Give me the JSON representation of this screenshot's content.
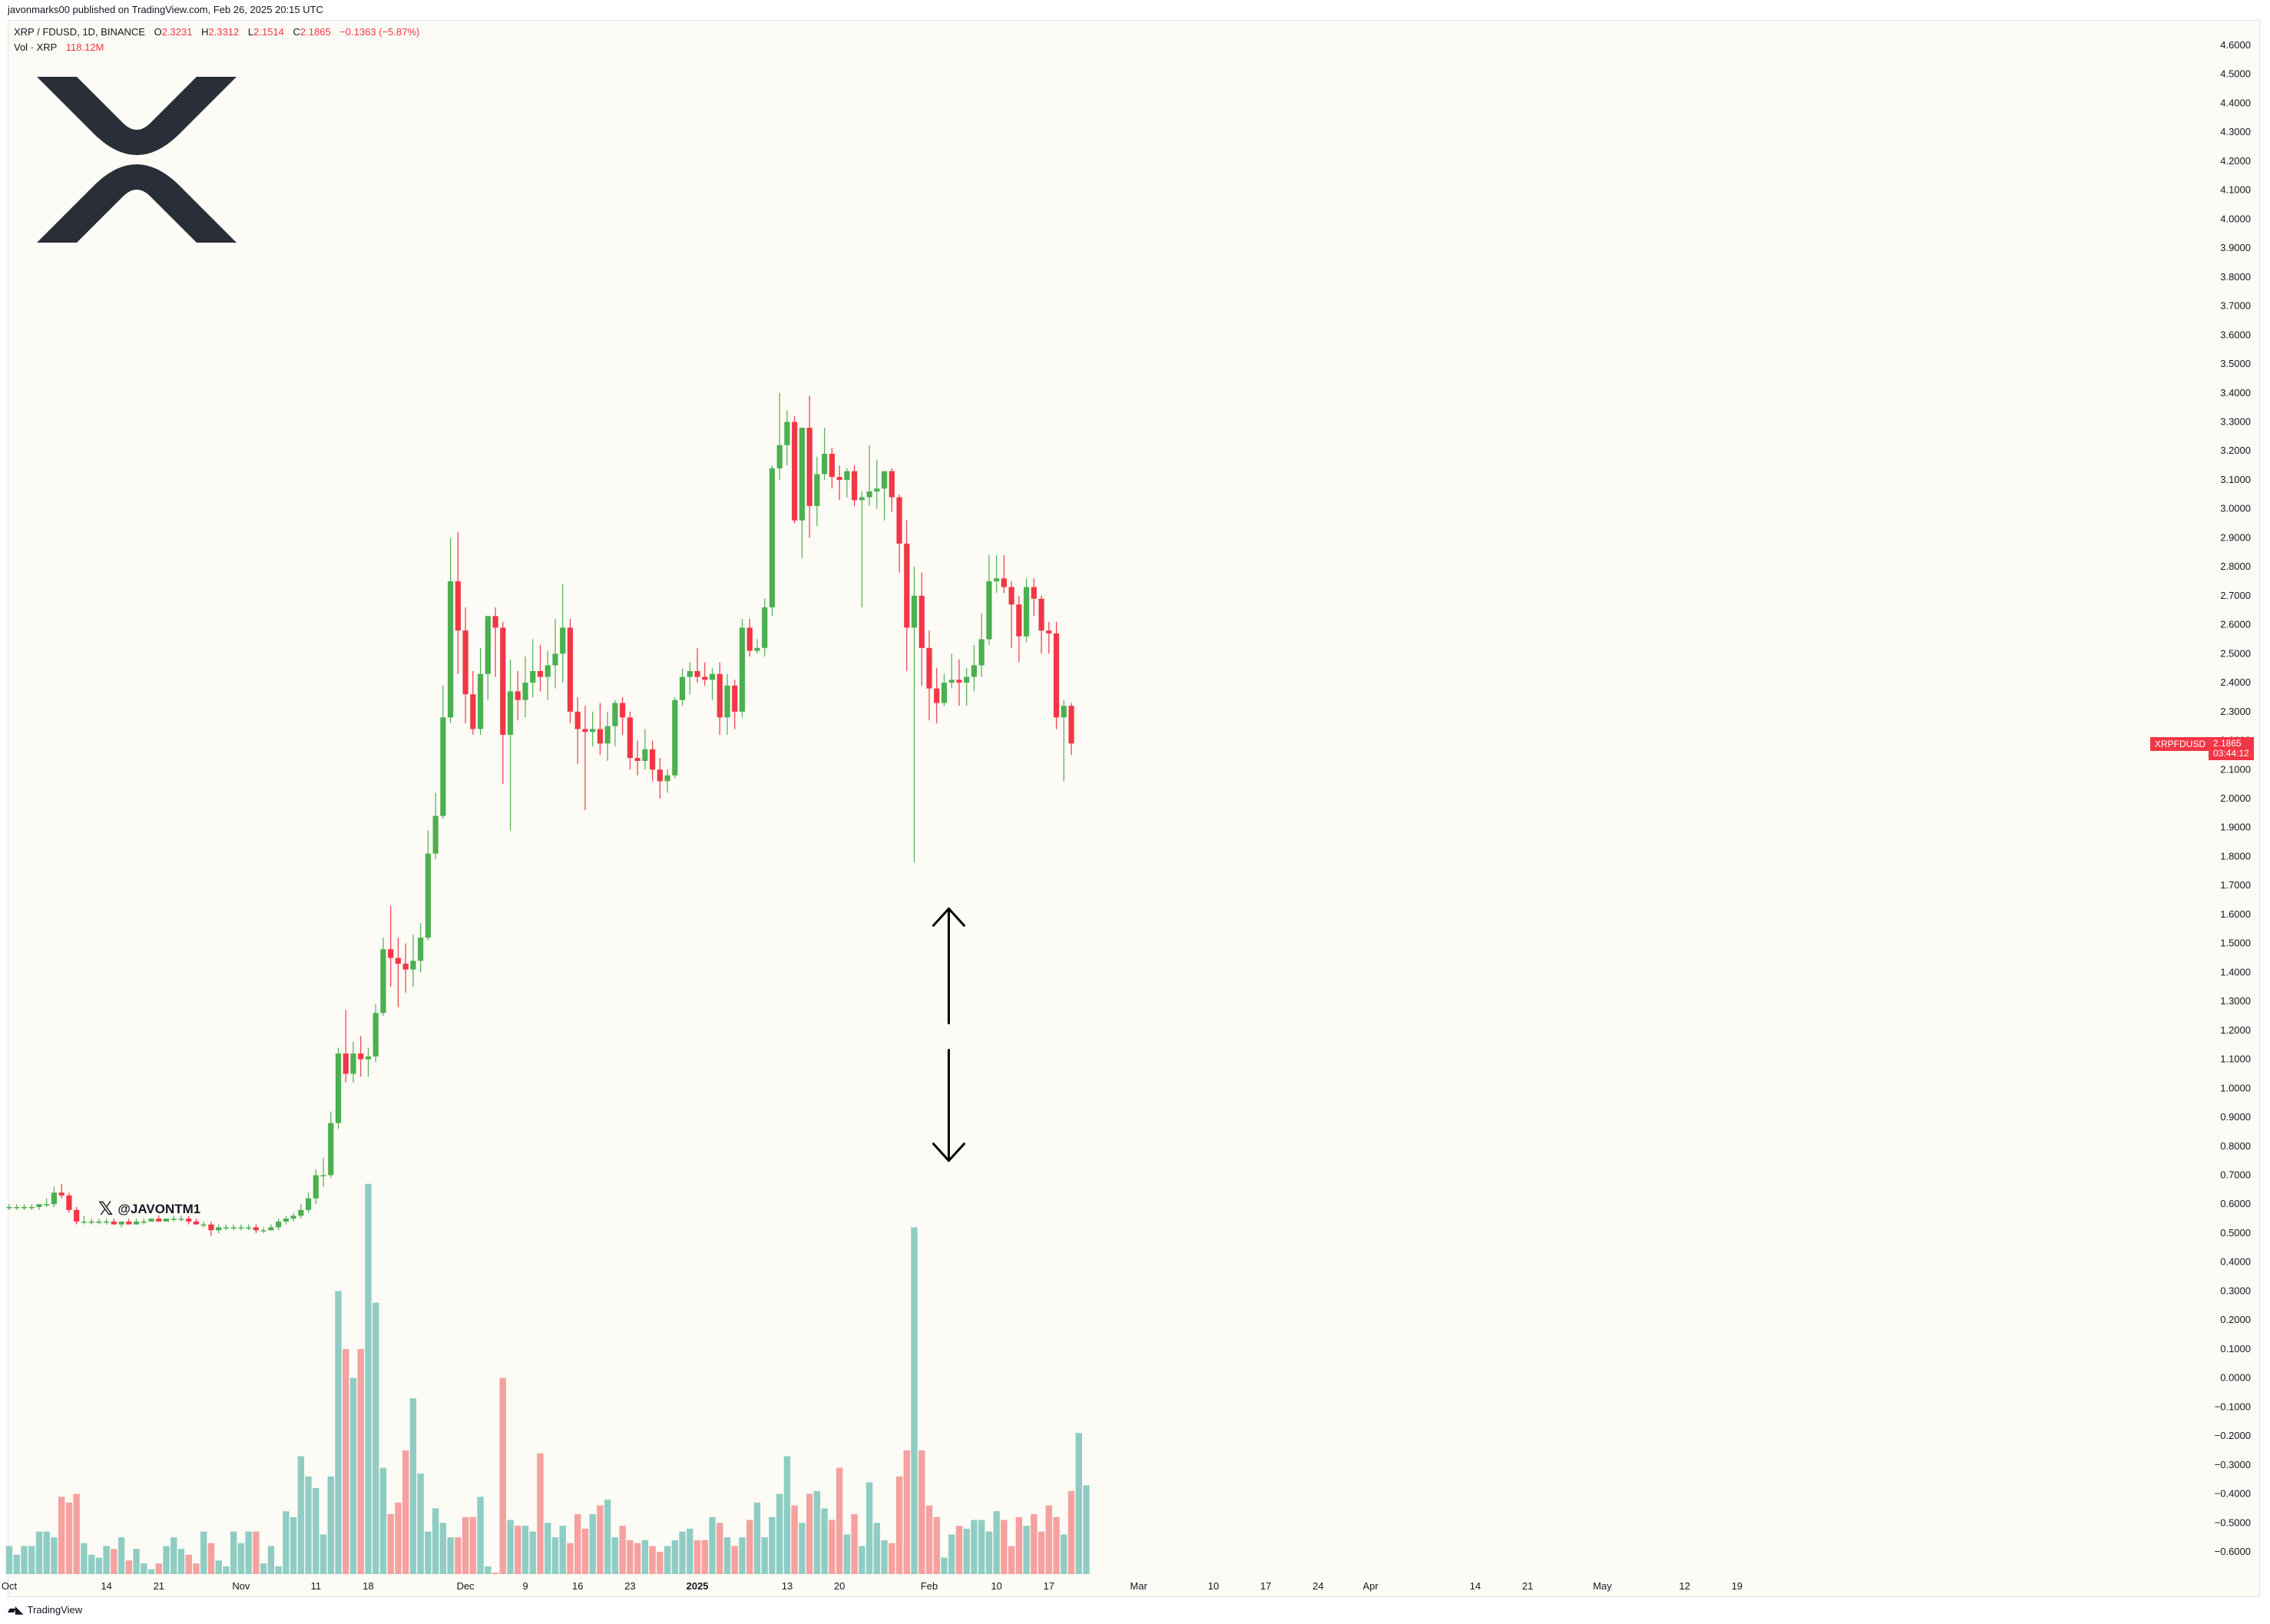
{
  "header": {
    "published": "javonmarks00 published on TradingView.com, Feb 26, 2025 20:15 UTC"
  },
  "legend": {
    "symbol": "XRP / FDUSD, 1D, BINANCE",
    "o_label": "O",
    "o": "2.3231",
    "h_label": "H",
    "h": "2.3312",
    "l_label": "L",
    "l": "2.1514",
    "c_label": "C",
    "c": "2.1865",
    "change": "−0.1363 (−5.87%)",
    "vol_label": "Vol · XRP",
    "vol": "118.12M"
  },
  "price_tag": {
    "symbol": "XRPFDUSD",
    "price": "2.1865",
    "countdown": "03:44:12"
  },
  "handle": {
    "text": "@JAVONTM1",
    "icon": "x-logo-icon"
  },
  "logo": {
    "icon": "xrp-logo-icon"
  },
  "footer": {
    "brand": "TradingView"
  },
  "colors": {
    "up": "#4caf50",
    "down": "#f23645",
    "vol_up": "#8fcdc4",
    "vol_down": "#f4a19f",
    "background": "#fdfbf5"
  },
  "chart_data": {
    "type": "candlestick",
    "symbol": "XRP / FDUSD",
    "interval": "1D",
    "y_axis": {
      "side": "right",
      "min": -0.6,
      "max": 4.6,
      "step": 0.1,
      "labels": [
        "4.6000",
        "4.5000",
        "4.4000",
        "4.3000",
        "4.2000",
        "4.1000",
        "4.0000",
        "3.9000",
        "3.8000",
        "3.7000",
        "3.6000",
        "3.5000",
        "3.4000",
        "3.3000",
        "3.2000",
        "3.1000",
        "3.0000",
        "2.9000",
        "2.8000",
        "2.7000",
        "2.6000",
        "2.5000",
        "2.4000",
        "2.3000",
        "2.2000",
        "2.1000",
        "2.0000",
        "1.9000",
        "1.8000",
        "1.7000",
        "1.6000",
        "1.5000",
        "1.4000",
        "1.3000",
        "1.2000",
        "1.1000",
        "1.0000",
        "0.9000",
        "0.8000",
        "0.7000",
        "0.6000",
        "0.5000",
        "0.4000",
        "0.3000",
        "0.2000",
        "0.1000",
        "0.0000",
        "−0.1000",
        "−0.2000",
        "−0.3000",
        "−0.4000",
        "−0.5000",
        "−0.6000"
      ]
    },
    "x_axis": {
      "labels": [
        "Oct",
        "14",
        "21",
        "Nov",
        "11",
        "18",
        "Dec",
        "9",
        "16",
        "23",
        "2025",
        "13",
        "20",
        "Feb",
        "10",
        "17",
        "Mar",
        "10",
        "17",
        "24",
        "Apr",
        "14",
        "21",
        "May",
        "12",
        "19"
      ],
      "label_day_index": [
        0,
        13,
        20,
        31,
        41,
        48,
        61,
        69,
        76,
        83,
        92,
        104,
        111,
        123,
        132,
        139,
        151,
        161,
        168,
        175,
        182,
        196,
        203,
        213,
        224,
        231
      ]
    },
    "annotations": [
      {
        "type": "double-arrow",
        "day_from": 125,
        "price_from": 1.62,
        "price_to": 0.75
      }
    ],
    "candles": [
      [
        0.59,
        0.6,
        0.58,
        0.59
      ],
      [
        0.59,
        0.6,
        0.58,
        0.59
      ],
      [
        0.59,
        0.6,
        0.58,
        0.59
      ],
      [
        0.59,
        0.6,
        0.58,
        0.59
      ],
      [
        0.59,
        0.6,
        0.58,
        0.6
      ],
      [
        0.6,
        0.62,
        0.59,
        0.6
      ],
      [
        0.6,
        0.66,
        0.59,
        0.64
      ],
      [
        0.64,
        0.67,
        0.62,
        0.63
      ],
      [
        0.63,
        0.64,
        0.57,
        0.58
      ],
      [
        0.58,
        0.59,
        0.53,
        0.54
      ],
      [
        0.54,
        0.56,
        0.53,
        0.54
      ],
      [
        0.54,
        0.55,
        0.53,
        0.54
      ],
      [
        0.54,
        0.55,
        0.53,
        0.54
      ],
      [
        0.54,
        0.55,
        0.53,
        0.54
      ],
      [
        0.54,
        0.55,
        0.53,
        0.53
      ],
      [
        0.53,
        0.54,
        0.52,
        0.54
      ],
      [
        0.54,
        0.55,
        0.53,
        0.53
      ],
      [
        0.53,
        0.55,
        0.53,
        0.54
      ],
      [
        0.54,
        0.55,
        0.53,
        0.54
      ],
      [
        0.54,
        0.55,
        0.54,
        0.55
      ],
      [
        0.55,
        0.56,
        0.54,
        0.54
      ],
      [
        0.54,
        0.55,
        0.54,
        0.55
      ],
      [
        0.55,
        0.56,
        0.54,
        0.55
      ],
      [
        0.55,
        0.56,
        0.54,
        0.55
      ],
      [
        0.55,
        0.56,
        0.53,
        0.54
      ],
      [
        0.54,
        0.55,
        0.53,
        0.53
      ],
      [
        0.53,
        0.54,
        0.52,
        0.53
      ],
      [
        0.53,
        0.54,
        0.49,
        0.51
      ],
      [
        0.51,
        0.53,
        0.5,
        0.52
      ],
      [
        0.52,
        0.53,
        0.51,
        0.52
      ],
      [
        0.52,
        0.53,
        0.51,
        0.52
      ],
      [
        0.52,
        0.53,
        0.51,
        0.52
      ],
      [
        0.52,
        0.53,
        0.51,
        0.52
      ],
      [
        0.52,
        0.53,
        0.5,
        0.51
      ],
      [
        0.51,
        0.52,
        0.5,
        0.51
      ],
      [
        0.51,
        0.53,
        0.51,
        0.52
      ],
      [
        0.52,
        0.55,
        0.51,
        0.54
      ],
      [
        0.54,
        0.56,
        0.53,
        0.55
      ],
      [
        0.55,
        0.57,
        0.54,
        0.56
      ],
      [
        0.56,
        0.6,
        0.55,
        0.58
      ],
      [
        0.58,
        0.64,
        0.57,
        0.62
      ],
      [
        0.62,
        0.72,
        0.6,
        0.7
      ],
      [
        0.7,
        0.76,
        0.66,
        0.7
      ],
      [
        0.7,
        0.92,
        0.69,
        0.88
      ],
      [
        0.88,
        1.14,
        0.86,
        1.12
      ],
      [
        1.12,
        1.27,
        1.02,
        1.05
      ],
      [
        1.05,
        1.16,
        1.02,
        1.12
      ],
      [
        1.12,
        1.18,
        1.04,
        1.1
      ],
      [
        1.1,
        1.14,
        1.04,
        1.11
      ],
      [
        1.11,
        1.29,
        1.09,
        1.26
      ],
      [
        1.26,
        1.52,
        1.25,
        1.48
      ],
      [
        1.48,
        1.63,
        1.35,
        1.45
      ],
      [
        1.45,
        1.52,
        1.28,
        1.43
      ],
      [
        1.43,
        1.5,
        1.33,
        1.41
      ],
      [
        1.41,
        1.53,
        1.35,
        1.44
      ],
      [
        1.44,
        1.57,
        1.4,
        1.52
      ],
      [
        1.52,
        1.89,
        1.51,
        1.81
      ],
      [
        1.81,
        2.02,
        1.79,
        1.94
      ],
      [
        1.94,
        2.39,
        1.93,
        2.28
      ],
      [
        2.28,
        2.9,
        2.26,
        2.75
      ],
      [
        2.75,
        2.92,
        2.43,
        2.58
      ],
      [
        2.58,
        2.66,
        2.26,
        2.36
      ],
      [
        2.36,
        2.44,
        2.22,
        2.24
      ],
      [
        2.24,
        2.52,
        2.22,
        2.43
      ],
      [
        2.43,
        2.63,
        2.34,
        2.63
      ],
      [
        2.63,
        2.66,
        2.42,
        2.59
      ],
      [
        2.59,
        2.61,
        2.05,
        2.22
      ],
      [
        2.22,
        2.48,
        1.89,
        2.37
      ],
      [
        2.37,
        2.44,
        2.27,
        2.34
      ],
      [
        2.34,
        2.49,
        2.28,
        2.4
      ],
      [
        2.4,
        2.55,
        2.35,
        2.44
      ],
      [
        2.44,
        2.53,
        2.37,
        2.42
      ],
      [
        2.42,
        2.51,
        2.34,
        2.46
      ],
      [
        2.46,
        2.62,
        2.38,
        2.5
      ],
      [
        2.5,
        2.74,
        2.4,
        2.59
      ],
      [
        2.59,
        2.62,
        2.26,
        2.3
      ],
      [
        2.3,
        2.35,
        2.12,
        2.24
      ],
      [
        2.24,
        2.32,
        1.96,
        2.23
      ],
      [
        2.23,
        2.3,
        2.18,
        2.24
      ],
      [
        2.24,
        2.33,
        2.15,
        2.19
      ],
      [
        2.19,
        2.3,
        2.13,
        2.25
      ],
      [
        2.25,
        2.34,
        2.18,
        2.33
      ],
      [
        2.33,
        2.35,
        2.22,
        2.28
      ],
      [
        2.28,
        2.3,
        2.1,
        2.14
      ],
      [
        2.14,
        2.2,
        2.08,
        2.13
      ],
      [
        2.13,
        2.24,
        2.1,
        2.17
      ],
      [
        2.17,
        2.2,
        2.06,
        2.1
      ],
      [
        2.1,
        2.14,
        2.0,
        2.06
      ],
      [
        2.06,
        2.1,
        2.02,
        2.08
      ],
      [
        2.08,
        2.35,
        2.07,
        2.34
      ],
      [
        2.34,
        2.45,
        2.32,
        2.42
      ],
      [
        2.42,
        2.47,
        2.36,
        2.44
      ],
      [
        2.44,
        2.52,
        2.4,
        2.42
      ],
      [
        2.42,
        2.47,
        2.39,
        2.41
      ],
      [
        2.41,
        2.45,
        2.34,
        2.43
      ],
      [
        2.43,
        2.47,
        2.22,
        2.28
      ],
      [
        2.28,
        2.43,
        2.22,
        2.39
      ],
      [
        2.39,
        2.41,
        2.24,
        2.3
      ],
      [
        2.3,
        2.62,
        2.28,
        2.59
      ],
      [
        2.59,
        2.62,
        2.49,
        2.51
      ],
      [
        2.51,
        2.55,
        2.5,
        2.52
      ],
      [
        2.52,
        2.69,
        2.49,
        2.66
      ],
      [
        2.66,
        3.15,
        2.63,
        3.14
      ],
      [
        3.14,
        3.4,
        3.1,
        3.22
      ],
      [
        3.22,
        3.34,
        3.15,
        3.3
      ],
      [
        3.3,
        3.32,
        2.95,
        2.96
      ],
      [
        2.96,
        3.26,
        2.83,
        3.28
      ],
      [
        3.28,
        3.39,
        2.9,
        3.01
      ],
      [
        3.01,
        3.18,
        2.94,
        3.12
      ],
      [
        3.12,
        3.28,
        3.1,
        3.19
      ],
      [
        3.19,
        3.21,
        3.07,
        3.11
      ],
      [
        3.11,
        3.15,
        3.03,
        3.1
      ],
      [
        3.1,
        3.14,
        3.04,
        3.13
      ],
      [
        3.13,
        3.15,
        3.01,
        3.03
      ],
      [
        3.03,
        3.06,
        2.66,
        3.04
      ],
      [
        3.04,
        3.22,
        3.01,
        3.06
      ],
      [
        3.06,
        3.17,
        3.0,
        3.07
      ],
      [
        3.07,
        3.12,
        2.96,
        3.13
      ],
      [
        3.13,
        3.14,
        2.99,
        3.04
      ],
      [
        3.04,
        3.05,
        2.78,
        2.88
      ],
      [
        2.88,
        2.96,
        2.44,
        2.59
      ],
      [
        2.59,
        2.8,
        1.78,
        2.7
      ],
      [
        2.7,
        2.78,
        2.39,
        2.52
      ],
      [
        2.52,
        2.58,
        2.27,
        2.38
      ],
      [
        2.38,
        2.45,
        2.26,
        2.33
      ],
      [
        2.33,
        2.43,
        2.32,
        2.4
      ],
      [
        2.4,
        2.5,
        2.38,
        2.41
      ],
      [
        2.41,
        2.48,
        2.32,
        2.4
      ],
      [
        2.4,
        2.45,
        2.32,
        2.42
      ],
      [
        2.42,
        2.53,
        2.37,
        2.46
      ],
      [
        2.46,
        2.64,
        2.42,
        2.55
      ],
      [
        2.55,
        2.84,
        2.53,
        2.75
      ],
      [
        2.75,
        2.84,
        2.71,
        2.76
      ],
      [
        2.76,
        2.84,
        2.71,
        2.73
      ],
      [
        2.73,
        2.75,
        2.52,
        2.67
      ],
      [
        2.67,
        2.7,
        2.47,
        2.56
      ],
      [
        2.56,
        2.76,
        2.54,
        2.73
      ],
      [
        2.73,
        2.76,
        2.63,
        2.69
      ],
      [
        2.69,
        2.7,
        2.5,
        2.58
      ],
      [
        2.58,
        2.61,
        2.5,
        2.57
      ],
      [
        2.57,
        2.61,
        2.24,
        2.28
      ],
      [
        2.28,
        2.34,
        2.06,
        2.32
      ],
      [
        2.32,
        2.33,
        2.15,
        2.19
      ]
    ],
    "volume_on_price_scale": [
      -0.58,
      -0.61,
      -0.58,
      -0.58,
      -0.53,
      -0.53,
      -0.55,
      -0.41,
      -0.43,
      -0.4,
      -0.57,
      -0.61,
      -0.62,
      -0.58,
      -0.59,
      -0.55,
      -0.63,
      -0.59,
      -0.64,
      -0.66,
      -0.64,
      -0.58,
      -0.55,
      -0.59,
      -0.61,
      -0.64,
      -0.53,
      -0.57,
      -0.63,
      -0.65,
      -0.53,
      -0.57,
      -0.53,
      -0.53,
      -0.64,
      -0.58,
      -0.65,
      -0.46,
      -0.48,
      -0.27,
      -0.34,
      -0.38,
      -0.54,
      -0.34,
      0.3,
      0.1,
      0.0,
      0.1,
      0.67,
      0.26,
      -0.31,
      -0.47,
      -0.43,
      -0.25,
      -0.07,
      -0.33,
      -0.53,
      -0.45,
      -0.5,
      -0.55,
      -0.55,
      -0.48,
      -0.48,
      -0.41,
      -0.65,
      -0.69,
      0.0,
      -0.49,
      -0.51,
      -0.51,
      -0.53,
      -0.26,
      -0.5,
      -0.55,
      -0.51,
      -0.57,
      -0.47,
      -0.52,
      -0.47,
      -0.44,
      -0.42,
      -0.55,
      -0.51,
      -0.56,
      -0.57,
      -0.56,
      -0.58,
      -0.6,
      -0.58,
      -0.56,
      -0.53,
      -0.52,
      -0.56,
      -0.56,
      -0.48,
      -0.5,
      -0.55,
      -0.58,
      -0.55,
      -0.49,
      -0.43,
      -0.55,
      -0.48,
      -0.4,
      -0.27,
      -0.44,
      -0.5,
      -0.4,
      -0.39,
      -0.45,
      -0.49,
      -0.31,
      -0.54,
      -0.47,
      -0.58,
      -0.36,
      -0.5,
      -0.56,
      -0.57,
      -0.34,
      -0.25,
      0.52,
      -0.25,
      -0.44,
      -0.48,
      -0.62,
      -0.54,
      -0.51,
      -0.52,
      -0.49,
      -0.49,
      -0.53,
      -0.46,
      -0.49,
      -0.58,
      -0.48,
      -0.51,
      -0.47,
      -0.53,
      -0.44,
      -0.48,
      -0.54,
      -0.39,
      -0.19,
      -0.37
    ]
  }
}
